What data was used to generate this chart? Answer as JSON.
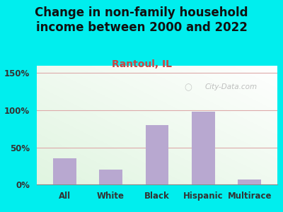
{
  "title": "Change in non-family household\nincome between 2000 and 2022",
  "subtitle": "Rantoul, IL",
  "categories": [
    "All",
    "White",
    "Black",
    "Hispanic",
    "Multirace"
  ],
  "values": [
    35,
    20,
    80,
    98,
    7
  ],
  "bar_color": "#b8a8d0",
  "outer_bg": "#00EEEE",
  "plot_bg_color": "#dff0d8",
  "title_fontsize": 12,
  "subtitle_fontsize": 10,
  "subtitle_color": "#cc4444",
  "title_color": "#111111",
  "tick_label_color": "#333333",
  "yticks": [
    0,
    50,
    100,
    150
  ],
  "ylim": [
    0,
    160
  ],
  "grid_color": "#ddaaaa",
  "watermark": "City-Data.com",
  "watermark_color": "#aaaaaa"
}
